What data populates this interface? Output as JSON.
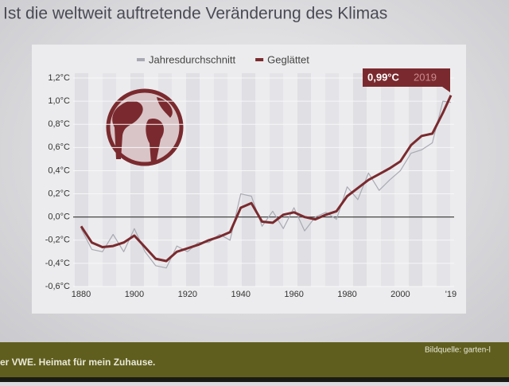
{
  "slide": {
    "title": "Ist die weltweit auftretende Veränderung des Klimas",
    "footer": "er VWE. Heimat für mein Zuhause.",
    "credit": "Bildquelle: garten-l"
  },
  "chart_data": {
    "type": "line",
    "annotation": {
      "value": "0,99°C",
      "year": "2019"
    },
    "x": [
      1880,
      1884,
      1888,
      1892,
      1896,
      1900,
      1904,
      1908,
      1912,
      1916,
      1920,
      1924,
      1928,
      1932,
      1936,
      1940,
      1944,
      1948,
      1952,
      1956,
      1960,
      1964,
      1968,
      1972,
      1976,
      1980,
      1984,
      1988,
      1992,
      1996,
      2000,
      2004,
      2008,
      2012,
      2016,
      2019
    ],
    "series": [
      {
        "name": "Jahresdurchschnitt",
        "color": "#a9a9b3",
        "values": [
          -0.1,
          -0.28,
          -0.3,
          -0.15,
          -0.3,
          -0.1,
          -0.3,
          -0.42,
          -0.44,
          -0.25,
          -0.3,
          -0.22,
          -0.22,
          -0.15,
          -0.2,
          0.2,
          0.18,
          -0.08,
          0.05,
          -0.1,
          0.08,
          -0.12,
          0.0,
          0.04,
          -0.02,
          0.26,
          0.15,
          0.38,
          0.23,
          0.32,
          0.4,
          0.55,
          0.58,
          0.64,
          1.0,
          0.99
        ]
      },
      {
        "name": "Geglättet",
        "color": "#7a2a2e",
        "values": [
          -0.08,
          -0.22,
          -0.26,
          -0.25,
          -0.22,
          -0.16,
          -0.26,
          -0.36,
          -0.38,
          -0.3,
          -0.27,
          -0.24,
          -0.2,
          -0.17,
          -0.13,
          0.08,
          0.12,
          -0.04,
          -0.05,
          0.02,
          0.04,
          0.0,
          -0.02,
          0.02,
          0.05,
          0.18,
          0.25,
          0.32,
          0.37,
          0.42,
          0.48,
          0.62,
          0.7,
          0.72,
          0.9,
          1.05
        ]
      }
    ],
    "xlim": [
      1877,
      2022
    ],
    "xticks": [
      1880,
      1900,
      1920,
      1940,
      1960,
      1980,
      2000,
      {
        "value": 2019,
        "label": "'19"
      }
    ],
    "ylim": [
      -0.6,
      1.2
    ],
    "yticks": [
      {
        "value": -0.6,
        "label": "-0,6°C"
      },
      {
        "value": -0.4,
        "label": "-0,4°C"
      },
      {
        "value": -0.2,
        "label": "-0,2°C"
      },
      {
        "value": 0,
        "label": "0,0°C"
      },
      {
        "value": 0.2,
        "label": "0,2°C"
      },
      {
        "value": 0.4,
        "label": "0,4°C"
      },
      {
        "value": 0.6,
        "label": "0,6°C"
      },
      {
        "value": 0.8,
        "label": "0,8°C"
      },
      {
        "value": 1.0,
        "label": "1,0°C"
      },
      {
        "value": 1.2,
        "label": "1,2°C"
      }
    ],
    "grid": true
  }
}
